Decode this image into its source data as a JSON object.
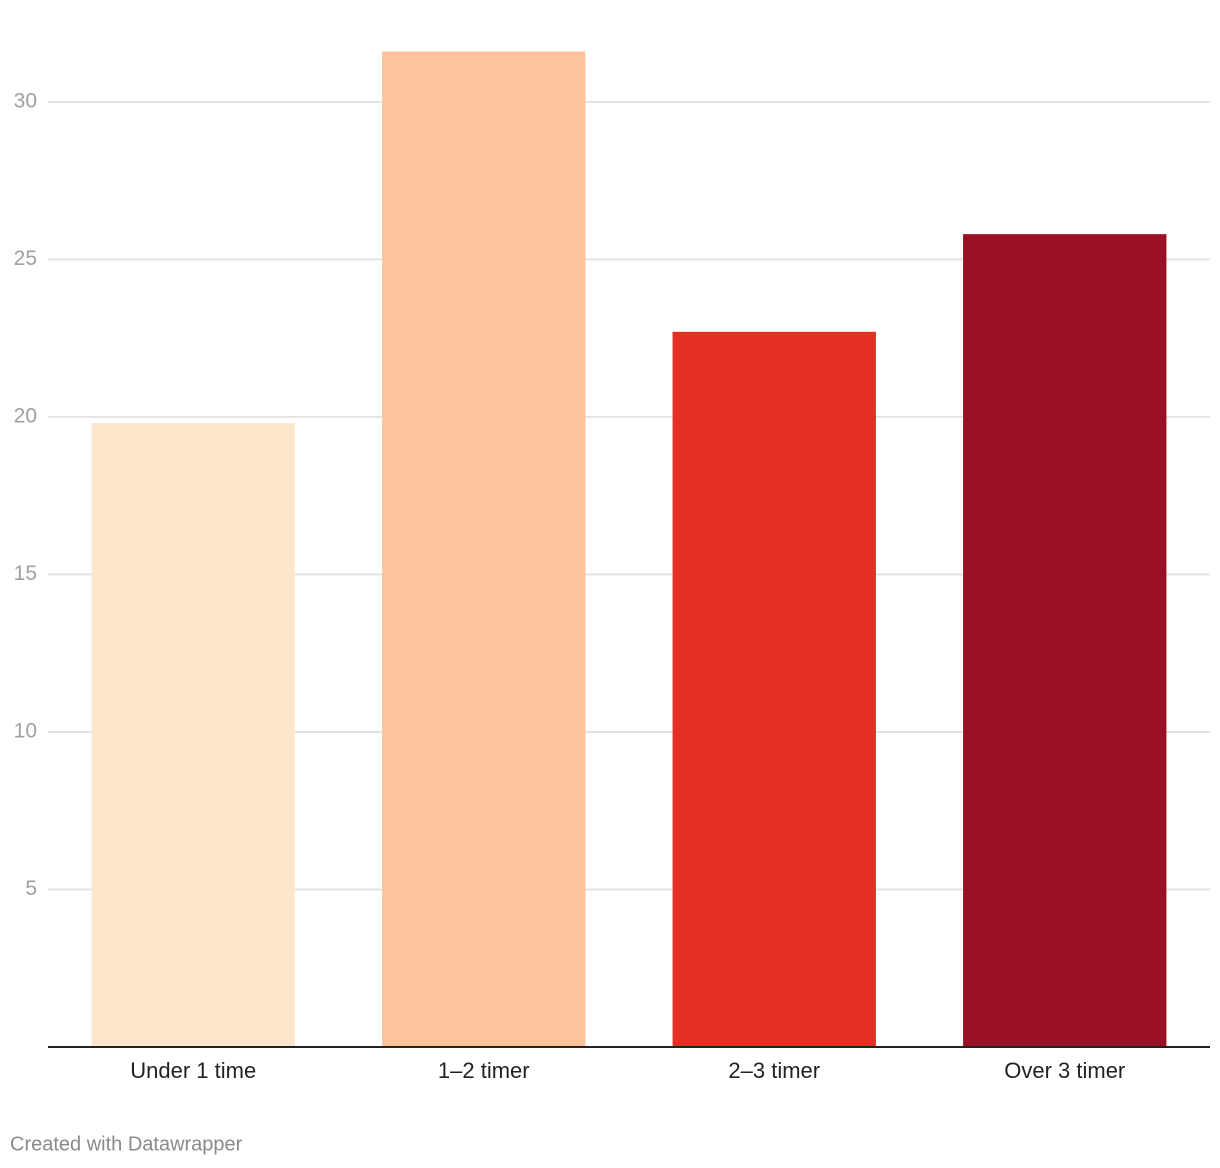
{
  "chart_data": {
    "type": "bar",
    "categories": [
      "Under 1 time",
      "1–2 timer",
      "2–3 timer",
      "Over 3 timer"
    ],
    "values": [
      19.8,
      31.6,
      22.7,
      25.8
    ],
    "colors": [
      "#fee6ca",
      "#fdc39c",
      "#e33023",
      "#9a1024"
    ],
    "ylim": [
      0,
      33.2
    ],
    "yticks": [
      5,
      10,
      15,
      20,
      25,
      30
    ],
    "grid": true,
    "footer": "Created with Datawrapper"
  }
}
